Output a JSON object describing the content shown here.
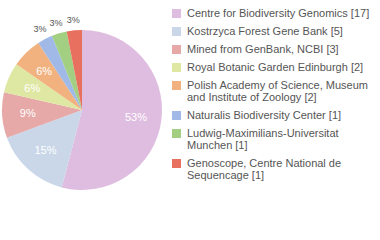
{
  "chart_data": {
    "type": "pie",
    "categories": [
      "Centre for Biodiversity Genomics [17]",
      "Kostrzyca Forest Gene Bank [5]",
      "Mined from GenBank, NCBI [3]",
      "Royal Botanic Garden Edinburgh [2]",
      "Polish Academy of Science, Museum and Institute of Zoology [2]",
      "Naturalis Biodiversity Center [1]",
      "Ludwig-Maximilians-Universitat Munchen [1]",
      "Genoscope, Centre National de Sequencage [1]"
    ],
    "values": [
      53,
      15,
      9,
      6,
      6,
      3,
      3,
      3
    ],
    "value_labels": [
      "53%",
      "15%",
      "9%",
      "6%",
      "6%",
      "3%",
      "3%",
      "3%"
    ],
    "colors": [
      "#dfbde0",
      "#c9d7e8",
      "#e6a9a8",
      "#dfe8a3",
      "#f2b27f",
      "#a0b9e6",
      "#a3cf82",
      "#e8705f"
    ],
    "data_labels": true,
    "legend": "right"
  }
}
